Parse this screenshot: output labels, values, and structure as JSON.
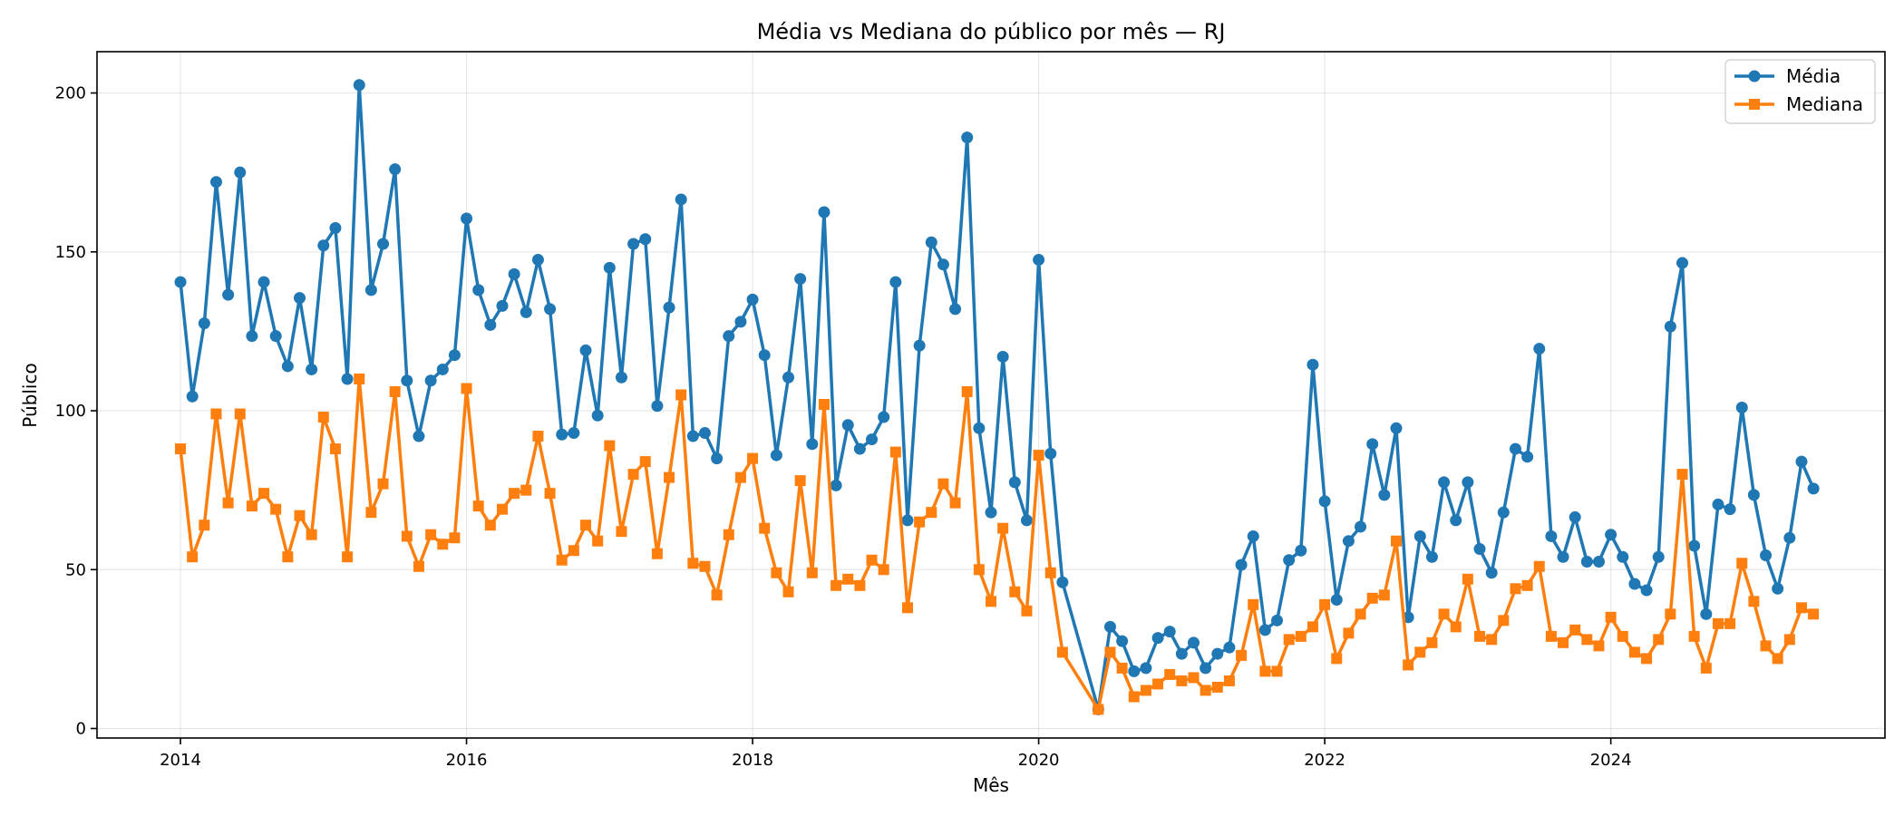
{
  "chart_data": {
    "type": "line",
    "title": "Média vs Mediana do público por mês — RJ",
    "xlabel": "Mês",
    "ylabel": "Público",
    "x_start": "2014-01",
    "xlim": [
      "2013-06",
      "2025-12"
    ],
    "ylim": [
      -3,
      213
    ],
    "x_ticks": [
      "2014",
      "2016",
      "2018",
      "2020",
      "2022",
      "2024"
    ],
    "y_ticks": [
      0,
      50,
      100,
      150,
      200
    ],
    "grid": true,
    "legend": "top-right",
    "series": [
      {
        "name": "Média",
        "color": "#1f77b4",
        "marker": "circle",
        "x": [
          "2014-01",
          "2014-02",
          "2014-03",
          "2014-04",
          "2014-05",
          "2014-06",
          "2014-07",
          "2014-08",
          "2014-09",
          "2014-10",
          "2014-11",
          "2014-12",
          "2015-01",
          "2015-02",
          "2015-03",
          "2015-04",
          "2015-05",
          "2015-06",
          "2015-07",
          "2015-08",
          "2015-09",
          "2015-10",
          "2015-11",
          "2015-12",
          "2016-01",
          "2016-02",
          "2016-03",
          "2016-04",
          "2016-05",
          "2016-06",
          "2016-07",
          "2016-08",
          "2016-09",
          "2016-10",
          "2016-11",
          "2016-12",
          "2017-01",
          "2017-02",
          "2017-03",
          "2017-04",
          "2017-05",
          "2017-06",
          "2017-07",
          "2017-08",
          "2017-09",
          "2017-10",
          "2017-11",
          "2017-12",
          "2018-01",
          "2018-02",
          "2018-03",
          "2018-04",
          "2018-05",
          "2018-06",
          "2018-07",
          "2018-08",
          "2018-09",
          "2018-10",
          "2018-11",
          "2018-12",
          "2019-01",
          "2019-02",
          "2019-03",
          "2019-04",
          "2019-05",
          "2019-06",
          "2019-07",
          "2019-08",
          "2019-09",
          "2019-10",
          "2019-11",
          "2019-12",
          "2020-01",
          "2020-02",
          "2020-03",
          "2020-06",
          "2020-07",
          "2020-08",
          "2020-09",
          "2020-10",
          "2020-11",
          "2020-12",
          "2021-01",
          "2021-02",
          "2021-03",
          "2021-04",
          "2021-05",
          "2021-06",
          "2021-07",
          "2021-08",
          "2021-09",
          "2021-10",
          "2021-11",
          "2021-12",
          "2022-01",
          "2022-02",
          "2022-03",
          "2022-04",
          "2022-05",
          "2022-06",
          "2022-07",
          "2022-08",
          "2022-09",
          "2022-10",
          "2022-11",
          "2022-12",
          "2023-01",
          "2023-02",
          "2023-03",
          "2023-04",
          "2023-05",
          "2023-06",
          "2023-07",
          "2023-08",
          "2023-09",
          "2023-10",
          "2023-11",
          "2023-12",
          "2024-01",
          "2024-02",
          "2024-03",
          "2024-04",
          "2024-05",
          "2024-06",
          "2024-07",
          "2024-08",
          "2024-09",
          "2024-10",
          "2024-11",
          "2024-12",
          "2025-01",
          "2025-02",
          "2025-03",
          "2025-04",
          "2025-05",
          "2025-06"
        ],
        "values": [
          140.5,
          104.5,
          127.5,
          172,
          136.5,
          175,
          123.5,
          140.5,
          123.5,
          114,
          135.5,
          113,
          152,
          157.5,
          110,
          202.5,
          138,
          152.5,
          176,
          109.5,
          92,
          109.5,
          113,
          117.5,
          160.5,
          138,
          127,
          133,
          143,
          131,
          147.5,
          132,
          92.5,
          93,
          119,
          98.5,
          145,
          110.5,
          152.5,
          154,
          101.5,
          132.5,
          166.5,
          92,
          93,
          85,
          123.5,
          128,
          135,
          117.5,
          86,
          110.5,
          141.5,
          89.5,
          162.5,
          76.5,
          95.5,
          88,
          91,
          98,
          140.5,
          65.5,
          120.5,
          153,
          146,
          132,
          186,
          94.5,
          68,
          117,
          77.5,
          65.5,
          147.5,
          86.5,
          46,
          6,
          32,
          27.5,
          18,
          19,
          28.5,
          30.5,
          23.5,
          27,
          19,
          23.5,
          25.5,
          51.5,
          60.5,
          31,
          34,
          53,
          56,
          114.5,
          71.5,
          40.5,
          59,
          63.5,
          89.5,
          73.5,
          94.5,
          35,
          60.5,
          54,
          77.5,
          65.5,
          77.5,
          56.5,
          49,
          68,
          88,
          85.5,
          119.5,
          60.5,
          54,
          66.5,
          52.5,
          52.5,
          61,
          54,
          45.5,
          43.5,
          54,
          126.5,
          146.5,
          57.5,
          36,
          70.5,
          69,
          101,
          73.5,
          54.5,
          44,
          60,
          84,
          75.5
        ]
      },
      {
        "name": "Mediana",
        "color": "#ff7f0e",
        "marker": "square",
        "x": [
          "2014-01",
          "2014-02",
          "2014-03",
          "2014-04",
          "2014-05",
          "2014-06",
          "2014-07",
          "2014-08",
          "2014-09",
          "2014-10",
          "2014-11",
          "2014-12",
          "2015-01",
          "2015-02",
          "2015-03",
          "2015-04",
          "2015-05",
          "2015-06",
          "2015-07",
          "2015-08",
          "2015-09",
          "2015-10",
          "2015-11",
          "2015-12",
          "2016-01",
          "2016-02",
          "2016-03",
          "2016-04",
          "2016-05",
          "2016-06",
          "2016-07",
          "2016-08",
          "2016-09",
          "2016-10",
          "2016-11",
          "2016-12",
          "2017-01",
          "2017-02",
          "2017-03",
          "2017-04",
          "2017-05",
          "2017-06",
          "2017-07",
          "2017-08",
          "2017-09",
          "2017-10",
          "2017-11",
          "2017-12",
          "2018-01",
          "2018-02",
          "2018-03",
          "2018-04",
          "2018-05",
          "2018-06",
          "2018-07",
          "2018-08",
          "2018-09",
          "2018-10",
          "2018-11",
          "2018-12",
          "2019-01",
          "2019-02",
          "2019-03",
          "2019-04",
          "2019-05",
          "2019-06",
          "2019-07",
          "2019-08",
          "2019-09",
          "2019-10",
          "2019-11",
          "2019-12",
          "2020-01",
          "2020-02",
          "2020-03",
          "2020-06",
          "2020-07",
          "2020-08",
          "2020-09",
          "2020-10",
          "2020-11",
          "2020-12",
          "2021-01",
          "2021-02",
          "2021-03",
          "2021-04",
          "2021-05",
          "2021-06",
          "2021-07",
          "2021-08",
          "2021-09",
          "2021-10",
          "2021-11",
          "2021-12",
          "2022-01",
          "2022-02",
          "2022-03",
          "2022-04",
          "2022-05",
          "2022-06",
          "2022-07",
          "2022-08",
          "2022-09",
          "2022-10",
          "2022-11",
          "2022-12",
          "2023-01",
          "2023-02",
          "2023-03",
          "2023-04",
          "2023-05",
          "2023-06",
          "2023-07",
          "2023-08",
          "2023-09",
          "2023-10",
          "2023-11",
          "2023-12",
          "2024-01",
          "2024-02",
          "2024-03",
          "2024-04",
          "2024-05",
          "2024-06",
          "2024-07",
          "2024-08",
          "2024-09",
          "2024-10",
          "2024-11",
          "2024-12",
          "2025-01",
          "2025-02",
          "2025-03",
          "2025-04",
          "2025-05",
          "2025-06"
        ],
        "values": [
          88,
          54,
          64,
          99,
          71,
          99,
          70,
          74,
          69,
          54,
          67,
          61,
          98,
          88,
          54,
          110,
          68,
          77,
          106,
          60.5,
          51,
          61,
          58,
          60,
          107,
          70,
          64,
          69,
          74,
          75,
          92,
          74,
          53,
          56,
          64,
          59,
          89,
          62,
          80,
          84,
          55,
          79,
          105,
          52,
          51,
          42,
          61,
          79,
          85,
          63,
          49,
          43,
          78,
          49,
          102,
          45,
          47,
          45,
          53,
          50,
          87,
          38,
          65,
          68,
          77,
          71,
          106,
          50,
          40,
          63,
          43,
          37,
          86,
          49,
          24,
          6,
          24,
          19,
          10,
          12,
          14,
          17,
          15,
          16,
          12,
          13,
          15,
          23,
          39,
          18,
          18,
          28,
          29,
          32,
          39,
          22,
          30,
          36,
          41,
          42,
          59,
          20,
          24,
          27,
          36,
          32,
          47,
          29,
          28,
          34,
          44,
          45,
          51,
          29,
          27,
          31,
          28,
          26,
          35,
          29,
          24,
          22,
          28,
          36,
          80,
          29,
          19,
          33,
          33,
          52,
          40,
          26,
          22,
          28,
          38,
          36
        ]
      }
    ]
  }
}
